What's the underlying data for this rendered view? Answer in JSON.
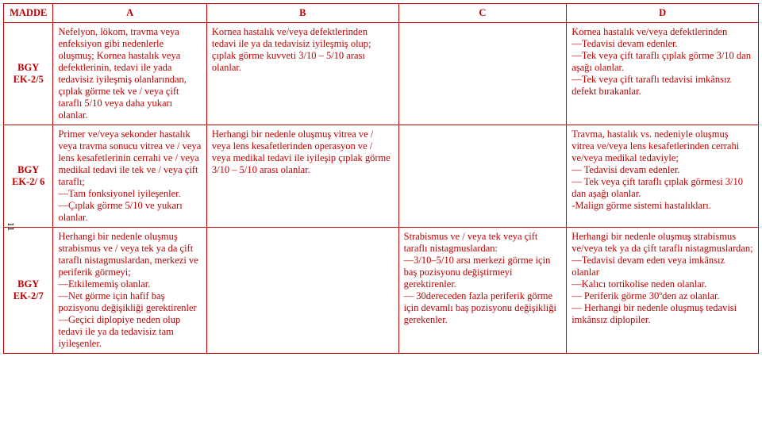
{
  "pageNumber": "11",
  "header": {
    "madde": "MADDE",
    "a": "A",
    "b": "B",
    "c": "C",
    "d": "D"
  },
  "rows": [
    {
      "label": "BGY\nEK-2/5",
      "a": "Nefelyon, lökom, travma veya enfeksiyon gibi nedenlerle oluşmuş; Kornea hastalık veya defektlerinin, tedavi ile yada tedavisiz iyileşmiş olanlarından, çıplak görme tek ve / veya çift taraflı 5/10 veya daha yukarı olanlar.",
      "b": "Kornea hastalık ve/veya defektlerinden tedavi ile ya da tedavisiz iyileşmiş olup; çıplak görme kuvveti 3/10 – 5/10 arası olanlar.",
      "c": "",
      "d": "Kornea hastalık ve/veya defektlerinden\n—Tedavisi devam edenler.\n—Tek veya çift taraflı çıplak görme 3/10 dan aşağı olanlar.\n—Tek veya çift taraflı tedavisi imkânsız defekt bırakanlar."
    },
    {
      "label": "BGY\nEK-2/ 6",
      "a": "Primer ve/veya sekonder hastalık veya travma sonucu vitrea ve / veya lens kesafetlerinin cerrahi ve / veya medikal tedavi ile tek ve / veya çift taraflı;\n—Tam fonksiyonel iyileşenler.\n—Çıplak görme 5/10 ve yukarı olanlar.",
      "b": "Herhangi bir nedenle oluşmuş vitrea ve / veya lens kesafetlerinden operasyon ve / veya medikal tedavi ile iyileşip çıplak görme 3/10 – 5/10 arası olanlar.",
      "c": "",
      "d": " Travma, hastalık vs. nedeniyle oluşmuş vitrea ve/veya lens kesafetlerinden cerrahi ve/veya medikal tedaviyle;\n— Tedavisi devam edenler.\n— Tek veya çift taraflı çıplak görmesi 3/10 dan aşağı olanlar.\n-Malign görme sistemi hastalıkları."
    },
    {
      "label": "BGY\nEK-2/7",
      "a": "Herhangi bir nedenle oluşmuş strabismus ve / veya tek ya da çift taraflı nistagmuslardan, merkezi ve periferik görmeyi;\n—Etkilememiş olanlar.\n—Net görme için hafif baş pozisyonu değişikliği gerektirenler\n—Geçici diplopiye neden olup tedavi ile ya da tedavisiz tam iyileşenler.",
      "b": "",
      "c": "Strabismus ve / veya tek veya çift taraflı nistagmuslardan:\n—3/10–5/10 arsı merkezi görme için baş pozisyonu değiştirmeyi gerektirenler.\n— 30dereceden fazla periferik görme için devamlı baş pozisyonu değişikliği gerekenler.",
      "d": "Herhangi bir nedenle oluşmuş strabismus ve/veya tek ya da çift taraflı nistagmuslardan;\n—Tedavisi devam eden veya imkânsız olanlar\n—Kalıcı tortikolise neden olanlar.\n— Periferik görme 30ºden az olanlar.\n— Herhangi bir nedenle oluşmuş tedavisi imkânsız diplopiler."
    }
  ]
}
